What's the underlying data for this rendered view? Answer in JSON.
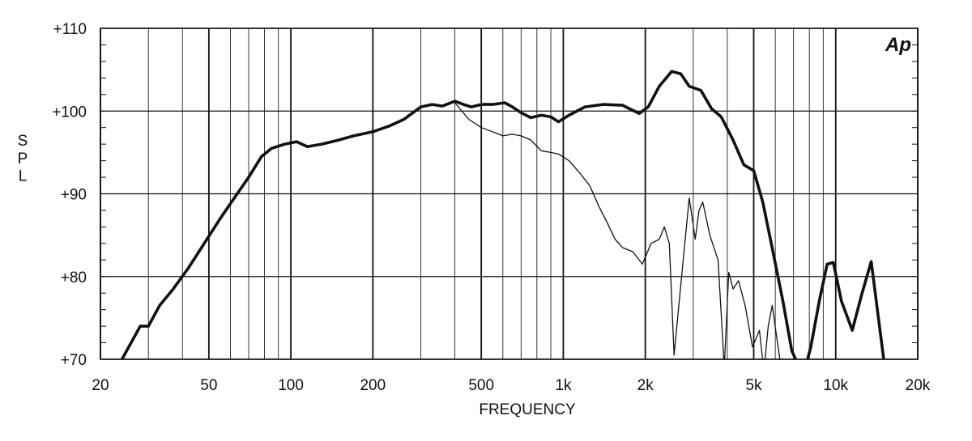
{
  "chart_data": {
    "type": "line",
    "xscale": "log",
    "xlim": [
      20,
      20000
    ],
    "ylim": [
      70,
      110
    ],
    "xlabel": "FREQUENCY",
    "ylabel": "SPL",
    "logo": "Ap",
    "grid": true,
    "legend": "none",
    "x_ticks": [
      {
        "value": 20,
        "label": "20"
      },
      {
        "value": 50,
        "label": "50"
      },
      {
        "value": 100,
        "label": "100"
      },
      {
        "value": 200,
        "label": "200"
      },
      {
        "value": 500,
        "label": "500"
      },
      {
        "value": 1000,
        "label": "1k"
      },
      {
        "value": 2000,
        "label": "2k"
      },
      {
        "value": 5000,
        "label": "5k"
      },
      {
        "value": 10000,
        "label": "10k"
      },
      {
        "value": 20000,
        "label": "20k"
      }
    ],
    "y_ticks": [
      {
        "value": 110,
        "label": "+110"
      },
      {
        "value": 100,
        "label": "+100"
      },
      {
        "value": 90,
        "label": "+90"
      },
      {
        "value": 80,
        "label": "+80"
      },
      {
        "value": 70,
        "label": "+70"
      }
    ],
    "minor_x_gridlines": [
      30,
      40,
      60,
      70,
      80,
      90,
      300,
      400,
      600,
      700,
      800,
      900,
      3000,
      4000,
      6000,
      7000,
      8000,
      9000
    ],
    "series": [
      {
        "style": "thick",
        "color": "#111111",
        "x": [
          24,
          28,
          30,
          33,
          37,
          42,
          47,
          55,
          62,
          70,
          78,
          85,
          95,
          105,
          115,
          130,
          150,
          170,
          200,
          230,
          260,
          300,
          330,
          360,
          400,
          430,
          460,
          500,
          550,
          610,
          650,
          700,
          760,
          830,
          900,
          960,
          1050,
          1200,
          1400,
          1650,
          1900,
          2050,
          2250,
          2500,
          2700,
          2900,
          3200,
          3500,
          3800,
          4200,
          4600,
          5000,
          5400,
          5800,
          6400,
          6900,
          7600,
          8100,
          8700,
          9300,
          9800,
          10500,
          11500,
          12500,
          13500,
          15000
        ],
        "y": [
          70.0,
          74.0,
          74.0,
          76.5,
          78.5,
          81.0,
          83.5,
          87.0,
          89.5,
          92.0,
          94.5,
          95.5,
          96.0,
          96.3,
          95.7,
          96.0,
          96.5,
          97.0,
          97.5,
          98.2,
          99.0,
          100.5,
          100.8,
          100.6,
          101.2,
          100.8,
          100.5,
          100.8,
          100.8,
          101.0,
          100.5,
          99.8,
          99.2,
          99.5,
          99.3,
          98.7,
          99.5,
          100.5,
          100.8,
          100.7,
          99.7,
          100.5,
          103.0,
          104.8,
          104.5,
          103.0,
          102.5,
          100.3,
          99.3,
          96.5,
          93.5,
          92.8,
          89.0,
          84.0,
          77.0,
          71.0,
          68.0,
          71.5,
          77.0,
          81.5,
          81.7,
          77.0,
          73.5,
          78.0,
          81.8,
          70.0
        ]
      },
      {
        "style": "thin",
        "color": "#111111",
        "x": [
          400,
          450,
          500,
          550,
          600,
          650,
          700,
          760,
          830,
          900,
          960,
          1050,
          1150,
          1250,
          1350,
          1450,
          1550,
          1650,
          1800,
          1950,
          2100,
          2250,
          2350,
          2450,
          2550,
          2700,
          2900,
          3050,
          3150,
          3250,
          3450,
          3700,
          3900,
          4050,
          4200,
          4400,
          4650,
          4950,
          5250,
          5450,
          5650,
          5850,
          6050,
          6300
        ],
        "y": [
          101.0,
          99.0,
          98.0,
          97.5,
          97.0,
          97.2,
          97.0,
          96.5,
          95.2,
          95.0,
          94.8,
          94.0,
          92.5,
          91.0,
          88.5,
          86.5,
          84.5,
          83.5,
          83.0,
          81.5,
          84.0,
          84.5,
          86.0,
          84.0,
          70.5,
          79.0,
          89.5,
          84.5,
          88.0,
          89.0,
          85.0,
          82.0,
          69.0,
          80.5,
          78.5,
          79.5,
          76.5,
          71.5,
          73.5,
          68.5,
          74.0,
          76.5,
          73.0,
          69.0
        ]
      }
    ]
  }
}
